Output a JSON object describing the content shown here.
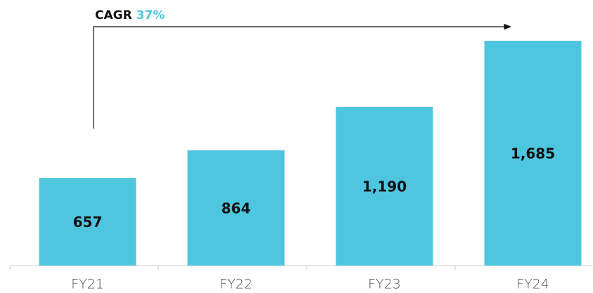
{
  "chart_data": {
    "type": "bar",
    "annotation": {
      "label": "CAGR",
      "value": "37%"
    },
    "categories": [
      "FY21",
      "FY22",
      "FY23",
      "FY24"
    ],
    "values": [
      657,
      864,
      1190,
      1685
    ],
    "value_labels": [
      "657",
      "864",
      "1,190",
      "1,685"
    ],
    "color": "#4fc6e0"
  }
}
